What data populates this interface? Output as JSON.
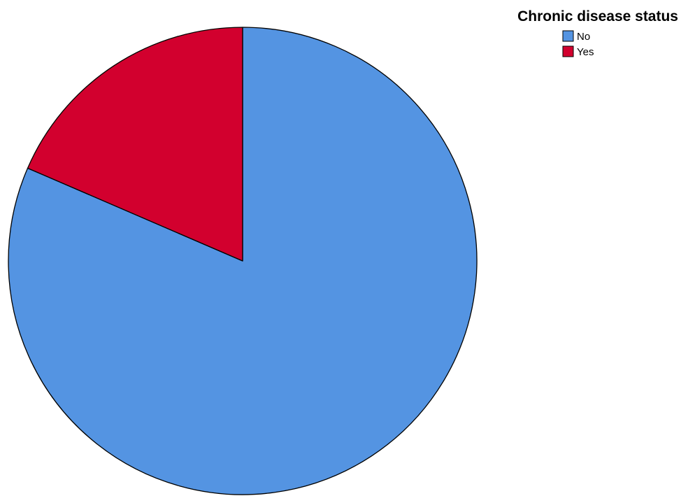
{
  "chart_data": {
    "type": "pie",
    "title": "",
    "legend_title": "Chronic disease status",
    "legend_position": "top-right",
    "start_angle": "12 o'clock",
    "direction": "clockwise",
    "slices": [
      {
        "label": "No",
        "value": 81.5,
        "color": "#5494E2"
      },
      {
        "label": "Yes",
        "value": 18.5,
        "color": "#D2002E"
      }
    ]
  }
}
